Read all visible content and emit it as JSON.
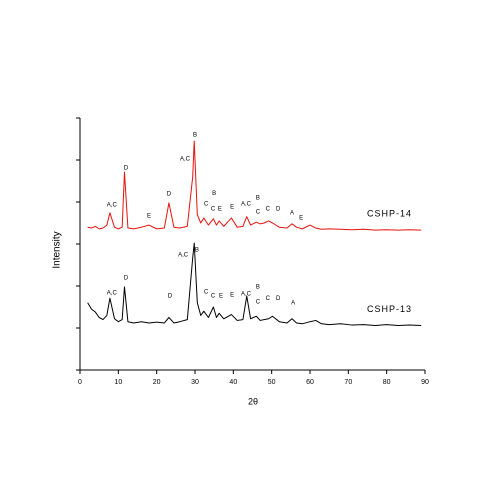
{
  "chart_data": {
    "type": "line",
    "x_label": "2θ",
    "y_label": "Intensity",
    "xlim": [
      0,
      90
    ],
    "xticks": [
      0,
      10,
      20,
      30,
      40,
      50,
      60,
      70,
      80,
      90
    ],
    "ylim": [
      0,
      6
    ],
    "yticks": [
      0,
      1,
      2,
      3,
      4,
      5,
      6
    ],
    "x": [
      2,
      3,
      4,
      5,
      6,
      7,
      7.8,
      9,
      10,
      11,
      11.6,
      12.5,
      14,
      16,
      18,
      20,
      22,
      23.2,
      24.5,
      26,
      28,
      29.4,
      29.8,
      30.6,
      31.5,
      32.3,
      33.5,
      34.8,
      35.6,
      36.3,
      37.5,
      39.5,
      41,
      42.5,
      43.5,
      44.5,
      46,
      47,
      48,
      49.2,
      50.2,
      52,
      54,
      55.3,
      56.5,
      58,
      60,
      61.5,
      63,
      65,
      68,
      71,
      74,
      77,
      80,
      83,
      86,
      89
    ],
    "series": [
      {
        "name": "CSHP-14",
        "color": "#e8120c",
        "values": [
          3.4,
          3.38,
          3.42,
          3.36,
          3.38,
          3.45,
          3.74,
          3.4,
          3.36,
          3.4,
          4.71,
          3.38,
          3.36,
          3.4,
          3.45,
          3.36,
          3.38,
          3.98,
          3.4,
          3.38,
          3.42,
          4.6,
          5.45,
          3.7,
          3.5,
          3.62,
          3.45,
          3.6,
          3.45,
          3.55,
          3.42,
          3.62,
          3.4,
          3.42,
          3.65,
          3.45,
          3.52,
          3.48,
          3.5,
          3.55,
          3.5,
          3.4,
          3.38,
          3.48,
          3.4,
          3.36,
          3.45,
          3.38,
          3.35,
          3.36,
          3.35,
          3.34,
          3.35,
          3.33,
          3.34,
          3.33,
          3.34,
          3.33
        ],
        "annotations": [
          {
            "text": "A,C",
            "x": 8.3,
            "y": 3.93
          },
          {
            "text": "D",
            "x": 12,
            "y": 4.81
          },
          {
            "text": "E",
            "x": 18,
            "y": 3.67
          },
          {
            "text": "D",
            "x": 23.2,
            "y": 4.19
          },
          {
            "text": "A,C",
            "x": 27.4,
            "y": 5.02
          },
          {
            "text": "B",
            "x": 30,
            "y": 5.6
          },
          {
            "text": "C",
            "x": 32.9,
            "y": 3.95
          },
          {
            "text": "B",
            "x": 35,
            "y": 4.21
          },
          {
            "text": "C",
            "x": 34.7,
            "y": 3.83
          },
          {
            "text": "E",
            "x": 36.5,
            "y": 3.83
          },
          {
            "text": "E",
            "x": 39.7,
            "y": 3.88
          },
          {
            "text": "A,C",
            "x": 43.3,
            "y": 3.95
          },
          {
            "text": "B",
            "x": 46.4,
            "y": 4.1
          },
          {
            "text": "C",
            "x": 46.4,
            "y": 3.76
          },
          {
            "text": "C",
            "x": 49,
            "y": 3.83
          },
          {
            "text": "D",
            "x": 51.7,
            "y": 3.83
          },
          {
            "text": "A",
            "x": 55.3,
            "y": 3.74
          },
          {
            "text": "E",
            "x": 57.7,
            "y": 3.62
          }
        ]
      },
      {
        "name": "CSHP-13",
        "color": "#000000",
        "values": [
          1.6,
          1.45,
          1.38,
          1.25,
          1.2,
          1.3,
          1.71,
          1.22,
          1.15,
          1.2,
          1.98,
          1.15,
          1.12,
          1.15,
          1.12,
          1.14,
          1.12,
          1.25,
          1.12,
          1.15,
          1.2,
          2.67,
          3.02,
          1.6,
          1.3,
          1.4,
          1.25,
          1.5,
          1.25,
          1.35,
          1.22,
          1.32,
          1.18,
          1.2,
          1.76,
          1.22,
          1.28,
          1.18,
          1.2,
          1.22,
          1.28,
          1.15,
          1.12,
          1.22,
          1.12,
          1.1,
          1.15,
          1.18,
          1.1,
          1.08,
          1.1,
          1.07,
          1.08,
          1.06,
          1.08,
          1.06,
          1.07,
          1.06
        ],
        "annotations": [
          {
            "text": "A,C",
            "x": 8.3,
            "y": 1.83
          },
          {
            "text": "D",
            "x": 12,
            "y": 2.19
          },
          {
            "text": "D",
            "x": 23.5,
            "y": 1.76
          },
          {
            "text": "A,C",
            "x": 26.9,
            "y": 2.74
          },
          {
            "text": "B",
            "x": 30.5,
            "y": 2.86
          },
          {
            "text": "C",
            "x": 32.9,
            "y": 1.86
          },
          {
            "text": "C",
            "x": 34.7,
            "y": 1.76
          },
          {
            "text": "E",
            "x": 36.8,
            "y": 1.76
          },
          {
            "text": "E",
            "x": 39.7,
            "y": 1.79
          },
          {
            "text": "A,C",
            "x": 43.3,
            "y": 1.81
          },
          {
            "text": "B",
            "x": 46.4,
            "y": 1.98
          },
          {
            "text": "C",
            "x": 46.4,
            "y": 1.62
          },
          {
            "text": "C",
            "x": 49,
            "y": 1.71
          },
          {
            "text": "D",
            "x": 51.7,
            "y": 1.71
          },
          {
            "text": "A",
            "x": 55.6,
            "y": 1.6
          }
        ]
      }
    ]
  }
}
